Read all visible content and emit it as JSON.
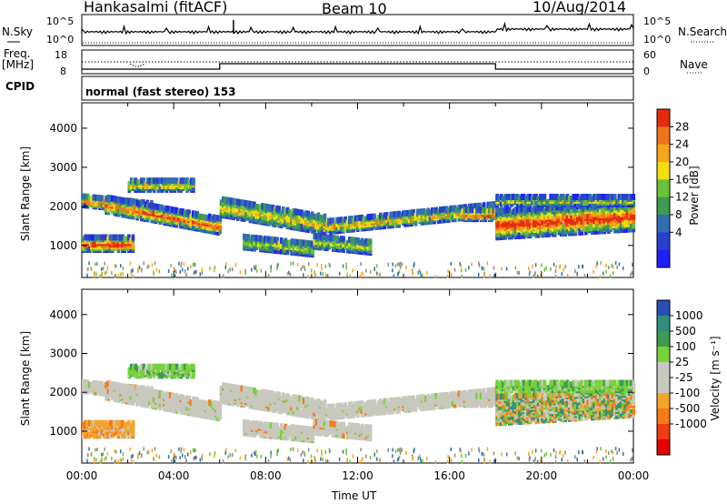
{
  "header": {
    "station": "Hankasalmi (fitACF)",
    "beam": "Beam 10",
    "date": "10/Aug/2014"
  },
  "status_panels": {
    "nsky_label": "N.Sky",
    "nsky_ticks": [
      "10^5",
      "10^0"
    ],
    "nsearch_label": "N.Search",
    "nsearch_ticks": [
      "10^5",
      "10^0"
    ],
    "freq_label": "Freq.",
    "freq_unit": "[MHz]",
    "freq_ticks": [
      "18",
      "8"
    ],
    "nave_label": "Nave",
    "nave_ticks": [
      "60",
      "0"
    ],
    "cpid_label": "CPID",
    "cpid_value": "normal (fast stereo) 153"
  },
  "colors": {
    "power_scale": [
      "#1f1fff",
      "#2a3fd0",
      "#2f6fb0",
      "#3f9a52",
      "#6cc23a",
      "#f2df10",
      "#f7a51a",
      "#f0741a",
      "#e62a10"
    ],
    "velocity_scale": [
      "#e60000",
      "#f03c14",
      "#f57a1a",
      "#f5a52a",
      "#c8c8bf",
      "#c8c8bf",
      "#78d23a",
      "#3f9a52",
      "#2f8f7f",
      "#2a4fb4"
    ],
    "ground_scatter": "#c8c8bf"
  },
  "chart_data": [
    {
      "type": "heatmap",
      "name": "power",
      "ylabel": "Slant Range [km]",
      "ylim": [
        180,
        4650
      ],
      "yticks": [
        "4000",
        "3000",
        "2000",
        "1000"
      ],
      "ytick_values": [
        4000,
        3000,
        2000,
        1000
      ],
      "xlim": [
        0,
        24
      ],
      "colorbar_label": "Power [dB]",
      "colorbar_ticks": [
        "28",
        "24",
        "20",
        "16",
        "12",
        "8",
        "4"
      ],
      "colorbar_range": [
        0,
        32
      ]
    },
    {
      "type": "heatmap",
      "name": "velocity",
      "ylabel": "Slant Range [km]",
      "ylim": [
        180,
        4650
      ],
      "yticks": [
        "4000",
        "3000",
        "2000",
        "1000"
      ],
      "ytick_values": [
        4000,
        3000,
        2000,
        1000
      ],
      "xlim": [
        0,
        24
      ],
      "xlabel": "Time UT",
      "xticks": [
        "00:00",
        "04:00",
        "08:00",
        "12:00",
        "16:00",
        "20:00",
        "00:00"
      ],
      "xtick_values": [
        0,
        4,
        8,
        12,
        16,
        20,
        24
      ],
      "colorbar_label": "Velocity [m s⁻¹]",
      "colorbar_ticks": [
        "1000",
        "500",
        "100",
        "25",
        "-25",
        "-100",
        "-500",
        "-1000"
      ]
    }
  ]
}
